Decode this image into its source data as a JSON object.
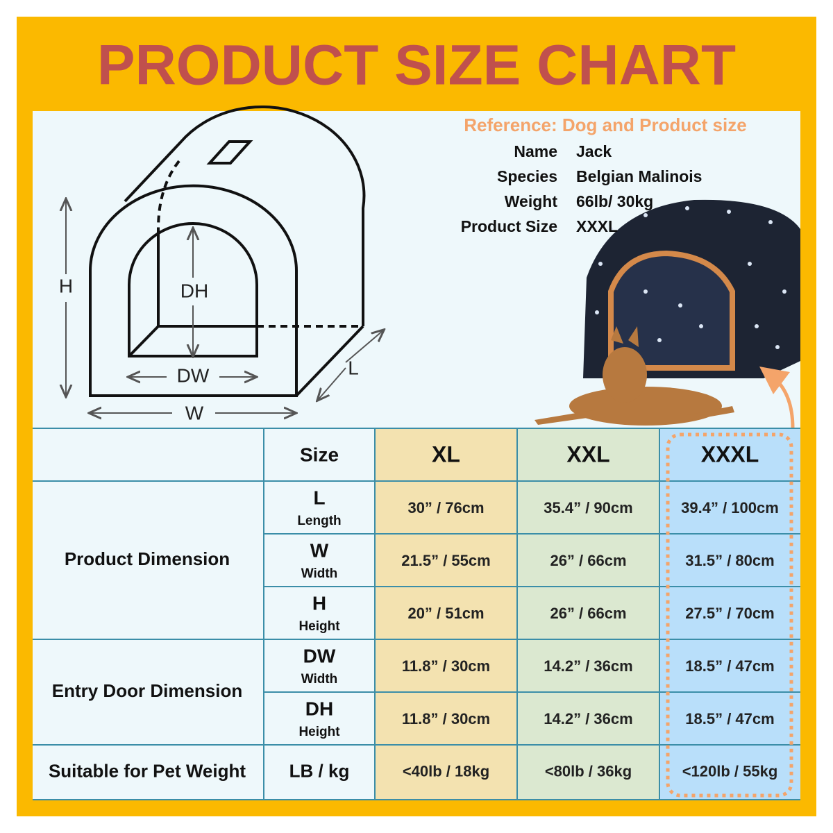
{
  "header": {
    "title": "PRODUCT SIZE CHART"
  },
  "reference": {
    "heading": "Reference: Dog and Product size",
    "rows": [
      [
        "Name",
        "Jack"
      ],
      [
        "Species",
        "Belgian Malinois"
      ],
      [
        "Weight",
        "66lb/ 30kg"
      ],
      [
        "Product Size",
        "XXXL"
      ]
    ]
  },
  "diagram": {
    "height": "H",
    "door_height": "DH",
    "door_width": "DW",
    "width": "W",
    "length": "L"
  },
  "table": {
    "columns": [
      "Size",
      "XL",
      "XXL",
      "XXXL"
    ],
    "groups": [
      {
        "label": "Product Dimension",
        "rows": [
          {
            "code": "L",
            "name": "Length",
            "values": [
              "30” / 76cm",
              "35.4” / 90cm",
              "39.4” / 100cm"
            ]
          },
          {
            "code": "W",
            "name": "Width",
            "values": [
              "21.5” / 55cm",
              "26” / 66cm",
              "31.5” / 80cm"
            ]
          },
          {
            "code": "H",
            "name": "Height",
            "values": [
              "20” / 51cm",
              "26” / 66cm",
              "27.5” / 70cm"
            ]
          }
        ]
      },
      {
        "label": "Entry Door Dimension",
        "rows": [
          {
            "code": "DW",
            "name": "Width",
            "values": [
              "11.8” / 30cm",
              "14.2” / 36cm",
              "18.5” / 47cm"
            ]
          },
          {
            "code": "DH",
            "name": "Height",
            "values": [
              "11.8” / 30cm",
              "14.2” / 36cm",
              "18.5” / 47cm"
            ]
          }
        ]
      }
    ],
    "weight": {
      "label": "Suitable for Pet Weight",
      "unit": "LB / kg",
      "values": [
        "<40lb / 18kg",
        "<80lb / 36kg",
        "<120lb / 55kg"
      ]
    }
  }
}
